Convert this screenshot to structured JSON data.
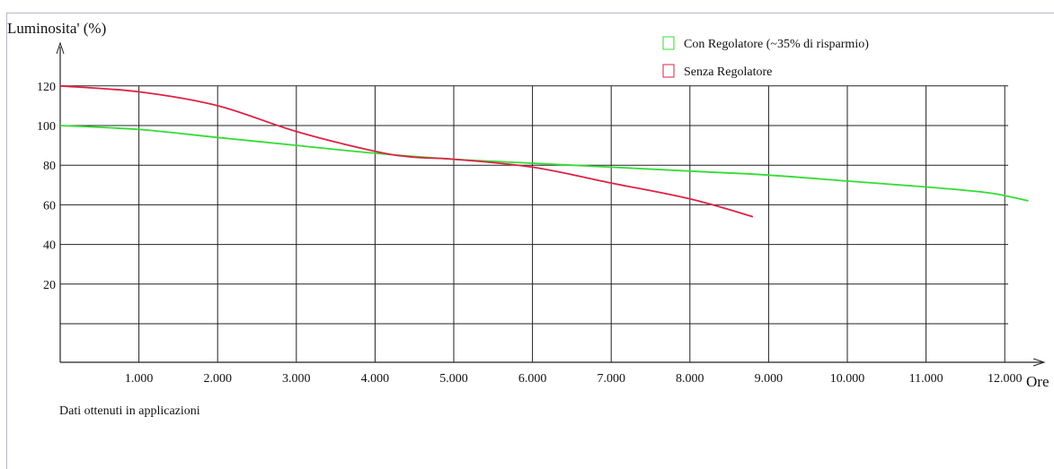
{
  "chart_data": {
    "type": "line",
    "ylabel": "Luminosita' (%)",
    "xlabel": "Ore",
    "note": "Dati ottenuti in applicazioni",
    "xlim": [
      0,
      12500
    ],
    "ylim": [
      -20,
      130
    ],
    "x_ticks": [
      {
        "value": 1000,
        "label": "1.000"
      },
      {
        "value": 2000,
        "label": "2.000"
      },
      {
        "value": 3000,
        "label": "3.000"
      },
      {
        "value": 4000,
        "label": "4.000"
      },
      {
        "value": 5000,
        "label": "5.000"
      },
      {
        "value": 6000,
        "label": "6.000"
      },
      {
        "value": 7000,
        "label": "7.000"
      },
      {
        "value": 8000,
        "label": "8.000"
      },
      {
        "value": 9000,
        "label": "9.000"
      },
      {
        "value": 10000,
        "label": "10.000"
      },
      {
        "value": 11000,
        "label": "11.000"
      },
      {
        "value": 12000,
        "label": "12.000"
      }
    ],
    "y_ticks": [
      {
        "value": 120,
        "label": "120"
      },
      {
        "value": 100,
        "label": "100"
      },
      {
        "value": 80,
        "label": "80"
      },
      {
        "value": 60,
        "label": "60"
      },
      {
        "value": 40,
        "label": "40"
      },
      {
        "value": 20,
        "label": "20"
      },
      {
        "value": 0,
        "label": ""
      }
    ],
    "grid": true,
    "legend_position": "top-right",
    "series": [
      {
        "name": "Con Regolatore (~35% di risparmio)",
        "color": "#33dd33",
        "x": [
          0,
          1000,
          2000,
          3000,
          4000,
          5000,
          6000,
          7000,
          8000,
          9000,
          10000,
          11000,
          11800,
          12300
        ],
        "y": [
          100,
          98,
          94,
          90,
          86,
          83,
          81,
          79,
          77,
          75,
          72,
          69,
          66,
          62
        ]
      },
      {
        "name": "Senza Regolatore",
        "color": "#dd2244",
        "x": [
          0,
          1000,
          2000,
          3000,
          4000,
          4500,
          5000,
          6000,
          7000,
          8000,
          8800
        ],
        "y": [
          120,
          117,
          110,
          97,
          87,
          84,
          83,
          79,
          71,
          63,
          54
        ]
      }
    ]
  }
}
